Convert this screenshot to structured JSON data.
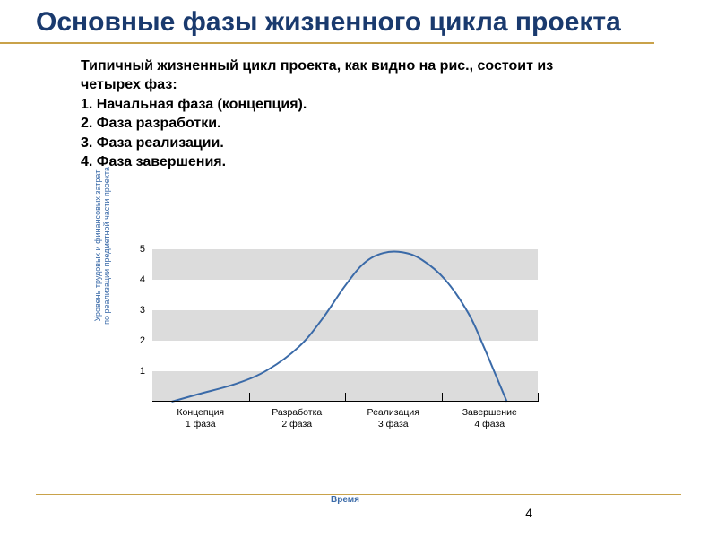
{
  "slide": {
    "title": "Основные фазы жизненного цикла проекта",
    "page_number": "4"
  },
  "text": {
    "intro": "Типичный жизненный цикл проекта, как видно на рис., состоит из четырех фаз:",
    "items": [
      "1. Начальная фаза (концепция).",
      "2. Фаза разработки.",
      "3. Фаза реализации.",
      "4. Фаза завершения."
    ]
  },
  "chart": {
    "type": "line",
    "ylabel": "Уровень трудовых и финансовых затрат\nпо реализации предметной части проекта",
    "xlabel": "Время",
    "ylim": [
      0,
      5
    ],
    "yticks": [
      1,
      2,
      3,
      4,
      5
    ],
    "band_color": "#dcdcdc",
    "line_color": "#3a6aa8",
    "line_width": 2,
    "background_color": "#ffffff",
    "phase_boundaries_x": [
      0,
      0.25,
      0.5,
      0.75,
      1.0
    ],
    "phases": [
      {
        "label": "Концепция\n1 фаза"
      },
      {
        "label": "Разработка\n2 фаза"
      },
      {
        "label": "Реализация\n3 фаза"
      },
      {
        "label": "Завершение\n4 фаза"
      }
    ],
    "curve": [
      {
        "x": 0.05,
        "y": 0.0
      },
      {
        "x": 0.12,
        "y": 0.25
      },
      {
        "x": 0.22,
        "y": 0.6
      },
      {
        "x": 0.3,
        "y": 1.05
      },
      {
        "x": 0.38,
        "y": 1.8
      },
      {
        "x": 0.44,
        "y": 2.7
      },
      {
        "x": 0.5,
        "y": 3.8
      },
      {
        "x": 0.55,
        "y": 4.55
      },
      {
        "x": 0.6,
        "y": 4.88
      },
      {
        "x": 0.65,
        "y": 4.9
      },
      {
        "x": 0.7,
        "y": 4.65
      },
      {
        "x": 0.76,
        "y": 4.0
      },
      {
        "x": 0.82,
        "y": 2.9
      },
      {
        "x": 0.86,
        "y": 1.8
      },
      {
        "x": 0.89,
        "y": 0.9
      },
      {
        "x": 0.92,
        "y": 0.0
      }
    ]
  }
}
